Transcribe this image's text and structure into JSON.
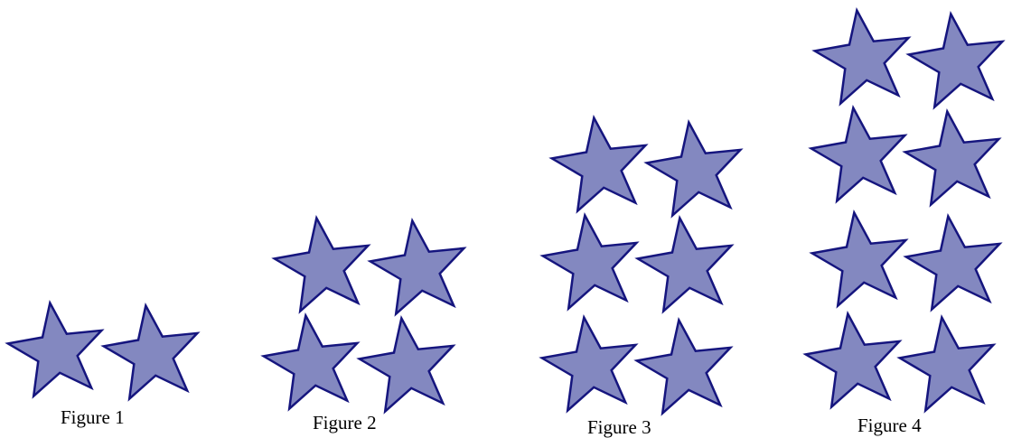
{
  "star_style": {
    "fill": "#8388c0",
    "stroke": "#15157e"
  },
  "figures": [
    {
      "label": "Figure 1",
      "star_count": 2
    },
    {
      "label": "Figure 2",
      "star_count": 4
    },
    {
      "label": "Figure 3",
      "star_count": 6
    },
    {
      "label": "Figure 4",
      "star_count": 8
    }
  ]
}
